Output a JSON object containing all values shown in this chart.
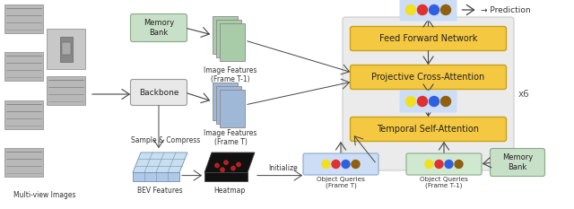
{
  "fig_width": 6.4,
  "fig_height": 2.33,
  "dpi": 100,
  "bg_color": "#ffffff",
  "box_colors": {
    "memory_bank": "#c8dfc8",
    "backbone": "#e8e8e8",
    "ffn": "#f5c842",
    "pca": "#f5c842",
    "tsa": "#f5c842",
    "repeat_box": "#ebebeb",
    "query_t": "#ccddf5",
    "query_t1": "#d0e8d0",
    "pred_bg": "#ccddf5"
  },
  "dot_colors": [
    "#f0e020",
    "#e03030",
    "#3060e0",
    "#906010"
  ],
  "feat_green": "#a8cca8",
  "feat_blue": "#a0b8d8",
  "labels": {
    "multi_view": "Multi-view Images",
    "memory_bank_top": "Memory\nBank",
    "backbone": "Backbone",
    "image_feat_t1": "Image Features\n(Frame T-1)",
    "image_feat_t": "Image Features\n(Frame T)",
    "sample_compress": "Sample & Compress",
    "bev_features": "BEV Features",
    "heatmap": "Heatmap",
    "initialize": "Initialize",
    "object_queries_t": "Object Queries\n(Frame T)",
    "object_queries_t1": "Object Queries\n(Frame T-1)",
    "memory_bank_bottom": "Memory\nBank",
    "ffn": "Feed Forward Network",
    "pca": "Projective Cross-Attention",
    "tsa": "Temporal Self-Attention",
    "x6": "x6",
    "prediction": "→ Prediction"
  },
  "arrow_color": "#444444",
  "edge_yellow": "#c8a018",
  "edge_green": "#88aa88",
  "edge_gray": "#999999"
}
